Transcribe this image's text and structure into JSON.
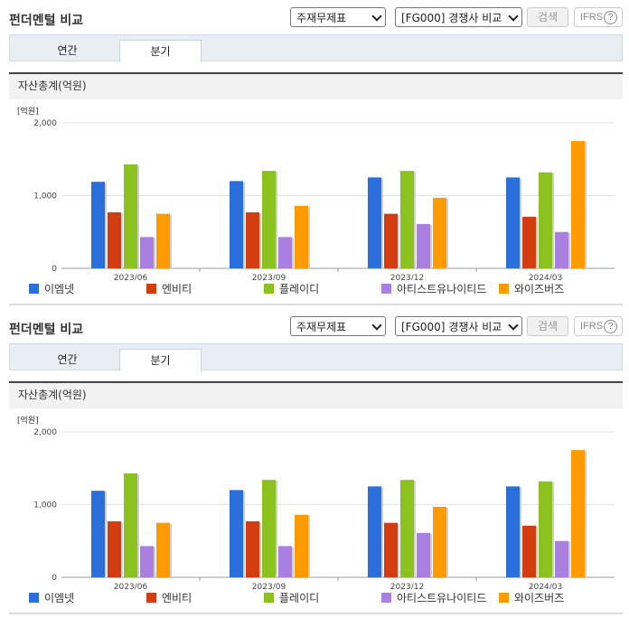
{
  "panels": [
    {
      "title": "펀더멘털 비교",
      "select_statement": "주재무제표",
      "select_compare": "[FG000] 경쟁사 비교",
      "search_label": "검색",
      "ifrs_label": "IFRS",
      "help_glyph": "?",
      "tabs": [
        "연간",
        "분기"
      ],
      "active_tab": "분기",
      "section_title": "자산총계(억원)",
      "unit": "[억원]"
    },
    {
      "title": "펀더멘털 비교",
      "select_statement": "주재무제표",
      "select_compare": "[FG000] 경쟁사 비교",
      "search_label": "검색",
      "ifrs_label": "IFRS",
      "help_glyph": "?",
      "tabs": [
        "연간",
        "분기"
      ],
      "active_tab": "분기",
      "section_title": "자산총계(억원)",
      "unit": "[억원]"
    }
  ],
  "chart_data": [
    {
      "type": "bar",
      "title": "자산총계(억원)",
      "ylabel": "[억원]",
      "categories": [
        "2023/06",
        "2023/09",
        "2023/12",
        "2024/03"
      ],
      "ylim": [
        0,
        2000
      ],
      "yticks": [
        "0",
        "1,000",
        "2,000"
      ],
      "legend_position": "bottom",
      "grid": true,
      "series": [
        {
          "name": "이엠넷",
          "color": "#2a6fdb",
          "values": [
            1190,
            1200,
            1250,
            1250
          ]
        },
        {
          "name": "엔비티",
          "color": "#d23c0f",
          "values": [
            770,
            770,
            750,
            710
          ]
        },
        {
          "name": "플레이디",
          "color": "#8cc21f",
          "values": [
            1430,
            1340,
            1340,
            1320
          ]
        },
        {
          "name": "아티스트유나이티드",
          "color": "#a97fe0",
          "values": [
            430,
            430,
            610,
            500
          ]
        },
        {
          "name": "와이즈버즈",
          "color": "#ff9a00",
          "values": [
            750,
            860,
            970,
            1750
          ]
        }
      ]
    },
    {
      "type": "bar",
      "title": "자산총계(억원)",
      "ylabel": "[억원]",
      "categories": [
        "2023/06",
        "2023/09",
        "2023/12",
        "2024/03"
      ],
      "ylim": [
        0,
        2000
      ],
      "yticks": [
        "0",
        "1,000",
        "2,000"
      ],
      "legend_position": "bottom",
      "grid": true,
      "series": [
        {
          "name": "이엠넷",
          "color": "#2a6fdb",
          "values": [
            1190,
            1200,
            1250,
            1250
          ]
        },
        {
          "name": "엔비티",
          "color": "#d23c0f",
          "values": [
            770,
            770,
            750,
            710
          ]
        },
        {
          "name": "플레이디",
          "color": "#8cc21f",
          "values": [
            1430,
            1340,
            1340,
            1320
          ]
        },
        {
          "name": "아티스트유나이티드",
          "color": "#a97fe0",
          "values": [
            430,
            430,
            610,
            500
          ]
        },
        {
          "name": "와이즈버즈",
          "color": "#ff9a00",
          "values": [
            750,
            860,
            970,
            1750
          ]
        }
      ]
    }
  ]
}
